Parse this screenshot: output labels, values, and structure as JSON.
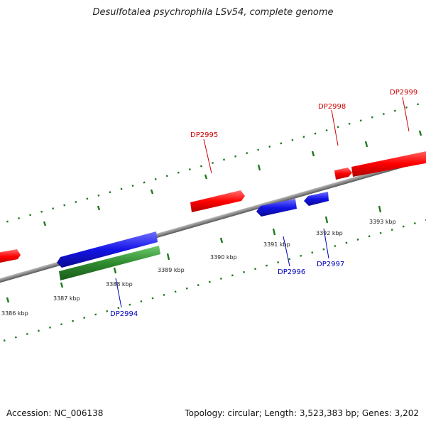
{
  "title": "Desulfotalea psychrophila LSv54, complete genome",
  "footer": {
    "accession": "Accession: NC_006138",
    "summary": "Topology: circular; Length: 3,523,383 bp; Genes: 3,202"
  },
  "colors": {
    "forward_gene": "#ff0000",
    "reverse_gene": "#1010e0",
    "rna_gene": "#2e8b2e",
    "backbone": "#808080",
    "tick": "#1e7a1e",
    "forward_label": "#cc0000",
    "reverse_label": "#0000bb"
  },
  "scale_labels": [
    "3386 kbp",
    "3387 kbp",
    "3388 kbp",
    "3389 kbp",
    "3390 kbp",
    "3391 kbp",
    "3392 kbp",
    "3393 kbp"
  ],
  "genes": [
    {
      "label": "DP2994",
      "strand": "reverse"
    },
    {
      "label": "DP2995",
      "strand": "forward"
    },
    {
      "label": "DP2996",
      "strand": "reverse"
    },
    {
      "label": "DP2997",
      "strand": "reverse"
    },
    {
      "label": "DP2998",
      "strand": "forward"
    },
    {
      "label": "DP2999",
      "strand": "forward"
    }
  ]
}
